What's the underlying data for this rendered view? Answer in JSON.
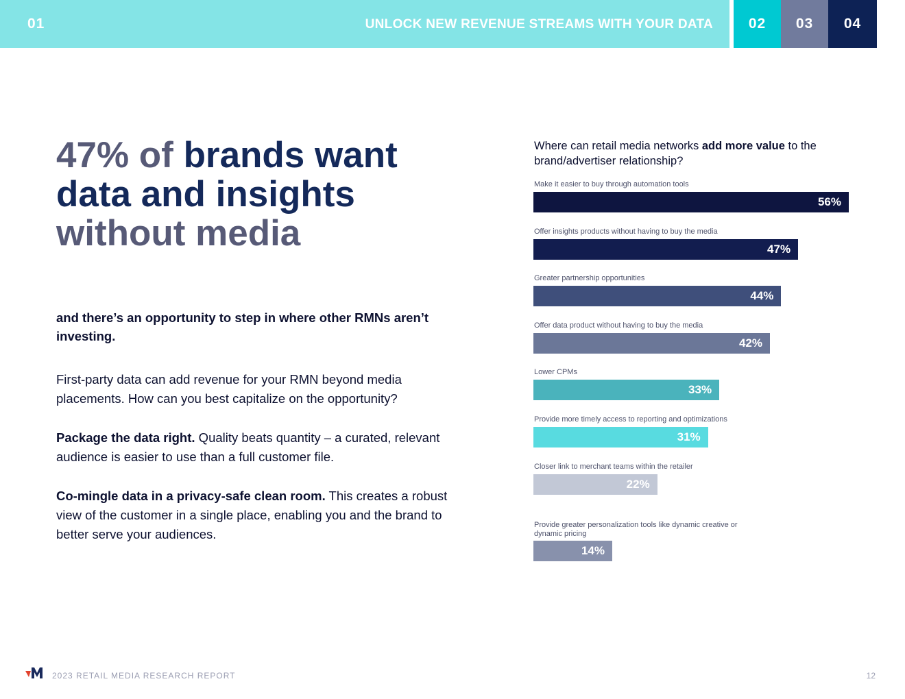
{
  "header": {
    "section": "01",
    "title": "UNLOCK NEW REVENUE STREAMS WITH YOUR DATA",
    "tabs": [
      {
        "label": "02",
        "color": "#00c9d2"
      },
      {
        "label": "03",
        "color": "#717b9d"
      },
      {
        "label": "04",
        "color": "#0d2255"
      }
    ],
    "bar_color": "#84e4e6"
  },
  "headline": {
    "part1": "47% of ",
    "part2": "brands want data and insights",
    "part3": "without media"
  },
  "subhead": "and there’s an opportunity to step in where other RMNs aren’t investing.",
  "body": {
    "p1": "First-party data can add revenue for your RMN beyond media placements. How can you best capitalize on the opportunity?",
    "p2_bold": "Package the data right.",
    "p2_rest": " Quality beats quantity – a curated, relevant audience is easier to use than a full customer file.",
    "p3_bold": "Co-mingle data in a privacy-safe clean room.",
    "p3_rest": " This creates a robust view of the customer in a single place, enabling you and the brand to better serve your audiences."
  },
  "chart_data": {
    "type": "bar",
    "orientation": "horizontal",
    "title_pre": "Where can retail media networks ",
    "title_bold": "add more value",
    "title_post": " to the brand/advertiser relationship?",
    "unit": "%",
    "categories": [
      "Make it easier to buy through automation tools",
      "Offer insights products without having to buy the media",
      "Greater partnership opportunities",
      "Offer data product without having to buy the media",
      "Lower CPMs",
      "Provide more timely access to reporting and optimizations",
      "Closer link to merchant teams within the retailer",
      "Provide greater personalization tools like dynamic creative or dynamic pricing"
    ],
    "values": [
      56,
      47,
      44,
      42,
      33,
      31,
      22,
      14
    ],
    "value_labels": [
      "56%",
      "47%",
      "44%",
      "42%",
      "33%",
      "31%",
      "22%",
      "14%"
    ],
    "colors": [
      "#0e1540",
      "#121d4f",
      "#3f4f7b",
      "#6b7798",
      "#4ab3bc",
      "#58dbe0",
      "#c2c8d6",
      "#8891ac"
    ]
  },
  "footer": {
    "report": "2023 RETAIL MEDIA RESEARCH REPORT",
    "page": "12"
  }
}
